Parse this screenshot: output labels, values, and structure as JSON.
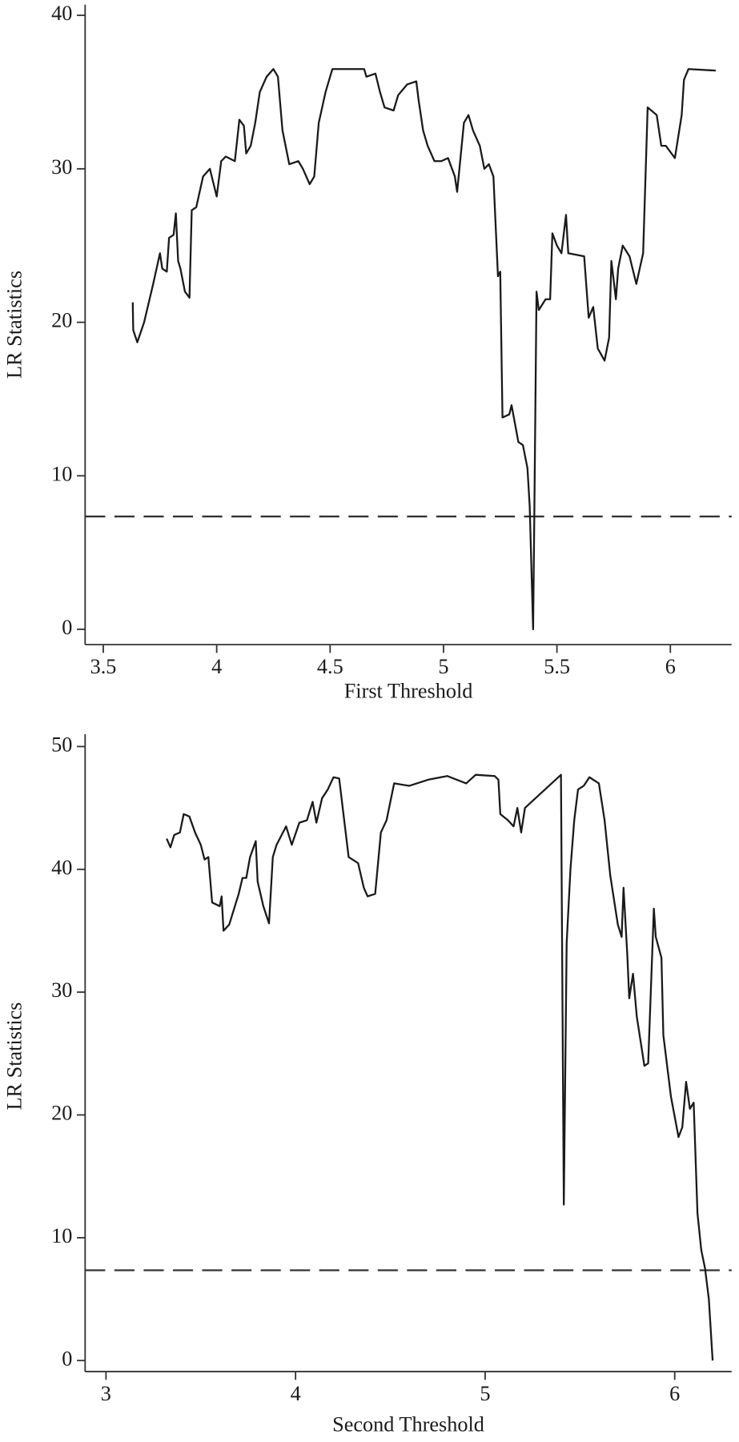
{
  "chart_data": [
    {
      "type": "line",
      "x_label": "First Threshold",
      "y_label": "LR Statistics",
      "color": "#1a1a1a",
      "hline": 7.35,
      "hline_color": "#333333",
      "xlim": [
        3.42,
        6.27
      ],
      "ylim": [
        -1.0,
        40.7
      ],
      "xticks": [
        3.5,
        4,
        4.5,
        5,
        5.5,
        6
      ],
      "yticks": [
        0,
        10,
        20,
        30,
        40
      ],
      "x": [
        3.63,
        3.632,
        3.65,
        3.68,
        3.72,
        3.75,
        3.76,
        3.78,
        3.79,
        3.81,
        3.82,
        3.83,
        3.84,
        3.86,
        3.88,
        3.89,
        3.91,
        3.94,
        3.97,
        4.0,
        4.02,
        4.04,
        4.08,
        4.1,
        4.12,
        4.13,
        4.15,
        4.17,
        4.19,
        4.22,
        4.25,
        4.27,
        4.29,
        4.32,
        4.36,
        4.38,
        4.41,
        4.43,
        4.45,
        4.48,
        4.51,
        4.6,
        4.65,
        4.66,
        4.7,
        4.72,
        4.74,
        4.78,
        4.8,
        4.84,
        4.88,
        4.89,
        4.91,
        4.93,
        4.96,
        4.99,
        5.02,
        5.05,
        5.06,
        5.07,
        5.09,
        5.11,
        5.13,
        5.16,
        5.18,
        5.2,
        5.22,
        5.24,
        5.25,
        5.26,
        5.29,
        5.3,
        5.32,
        5.33,
        5.35,
        5.37,
        5.38,
        5.395,
        5.4,
        5.41,
        5.42,
        5.45,
        5.47,
        5.48,
        5.5,
        5.52,
        5.54,
        5.55,
        5.62,
        5.64,
        5.66,
        5.68,
        5.71,
        5.73,
        5.74,
        5.76,
        5.77,
        5.79,
        5.82,
        5.85,
        5.88,
        5.9,
        5.94,
        5.96,
        5.98,
        6.02,
        6.05,
        6.06,
        6.08,
        6.2
      ],
      "values": [
        21.3,
        19.5,
        18.7,
        20,
        22.5,
        24.5,
        23.5,
        23.3,
        25.5,
        25.7,
        27.1,
        24,
        23.5,
        22,
        21.6,
        27.3,
        27.5,
        29.5,
        30,
        28.2,
        30.5,
        30.8,
        30.5,
        33.2,
        32.8,
        31,
        31.5,
        33,
        35,
        36,
        36.5,
        36,
        32.5,
        30.3,
        30.5,
        30,
        29,
        29.5,
        33,
        35,
        36.5,
        36.5,
        36.5,
        36,
        36.2,
        35,
        34,
        33.8,
        34.8,
        35.5,
        35.7,
        34.5,
        32.5,
        31.5,
        30.5,
        30.5,
        30.7,
        29.5,
        28.5,
        30,
        33,
        33.5,
        32.5,
        31.5,
        30,
        30.3,
        29.5,
        23,
        23.3,
        13.8,
        14,
        14.6,
        13,
        12.2,
        12,
        10.5,
        8,
        0,
        7,
        22,
        20.8,
        21.5,
        21.5,
        25.8,
        25,
        24.5,
        27,
        24.5,
        24.3,
        20.3,
        21,
        18.3,
        17.5,
        19,
        24,
        21.5,
        23.5,
        25,
        24.3,
        22.5,
        24.5,
        34,
        33.5,
        31.5,
        31.5,
        30.7,
        33.5,
        35.8,
        36.5,
        36.4
      ]
    },
    {
      "type": "line",
      "x_label": "Second Threshold",
      "y_label": "LR Statistics",
      "color": "#1a1a1a",
      "hline": 7.35,
      "hline_color": "#333333",
      "xlim": [
        2.89,
        6.3
      ],
      "ylim": [
        -0.9,
        51.0
      ],
      "xticks": [
        3,
        4,
        5,
        6
      ],
      "yticks": [
        0,
        10,
        20,
        30,
        40,
        50
      ],
      "x": [
        3.32,
        3.34,
        3.36,
        3.39,
        3.41,
        3.44,
        3.47,
        3.5,
        3.52,
        3.54,
        3.56,
        3.6,
        3.61,
        3.62,
        3.65,
        3.7,
        3.72,
        3.74,
        3.76,
        3.79,
        3.8,
        3.83,
        3.86,
        3.88,
        3.9,
        3.95,
        3.98,
        4.02,
        4.06,
        4.09,
        4.11,
        4.14,
        4.17,
        4.2,
        4.23,
        4.28,
        4.33,
        4.36,
        4.38,
        4.42,
        4.45,
        4.48,
        4.52,
        4.6,
        4.7,
        4.8,
        4.9,
        4.95,
        5.05,
        5.07,
        5.08,
        5.12,
        5.15,
        5.17,
        5.19,
        5.21,
        5.4,
        5.415,
        5.43,
        5.45,
        5.47,
        5.49,
        5.52,
        5.55,
        5.6,
        5.63,
        5.66,
        5.7,
        5.72,
        5.73,
        5.75,
        5.76,
        5.78,
        5.8,
        5.84,
        5.86,
        5.89,
        5.9,
        5.93,
        5.94,
        5.98,
        6.02,
        6.04,
        6.06,
        6.08,
        6.1,
        6.12,
        6.14,
        6.16,
        6.18,
        6.2
      ],
      "values": [
        42.5,
        41.8,
        42.8,
        43,
        44.5,
        44.3,
        43,
        42,
        40.8,
        41,
        37.3,
        37,
        37.8,
        35,
        35.5,
        38,
        39.3,
        39.3,
        41,
        42.3,
        39,
        37,
        35.6,
        41,
        42,
        43.5,
        42,
        43.8,
        44,
        45.5,
        43.8,
        45.8,
        46.5,
        47.5,
        47.4,
        41,
        40.5,
        38.5,
        37.8,
        38,
        43,
        44,
        47,
        46.8,
        47.3,
        47.6,
        47,
        47.7,
        47.6,
        47.3,
        44.5,
        44,
        43.5,
        45,
        43,
        45,
        47.7,
        12.7,
        34,
        40,
        44,
        46.5,
        46.8,
        47.5,
        47,
        44,
        39.5,
        35.5,
        34.5,
        38.5,
        33,
        29.5,
        31.5,
        28,
        24,
        24.2,
        36.8,
        34.5,
        32.8,
        26.5,
        21.5,
        18.2,
        19,
        22.7,
        20.5,
        21,
        12,
        9,
        7.5,
        5,
        0
      ]
    }
  ]
}
